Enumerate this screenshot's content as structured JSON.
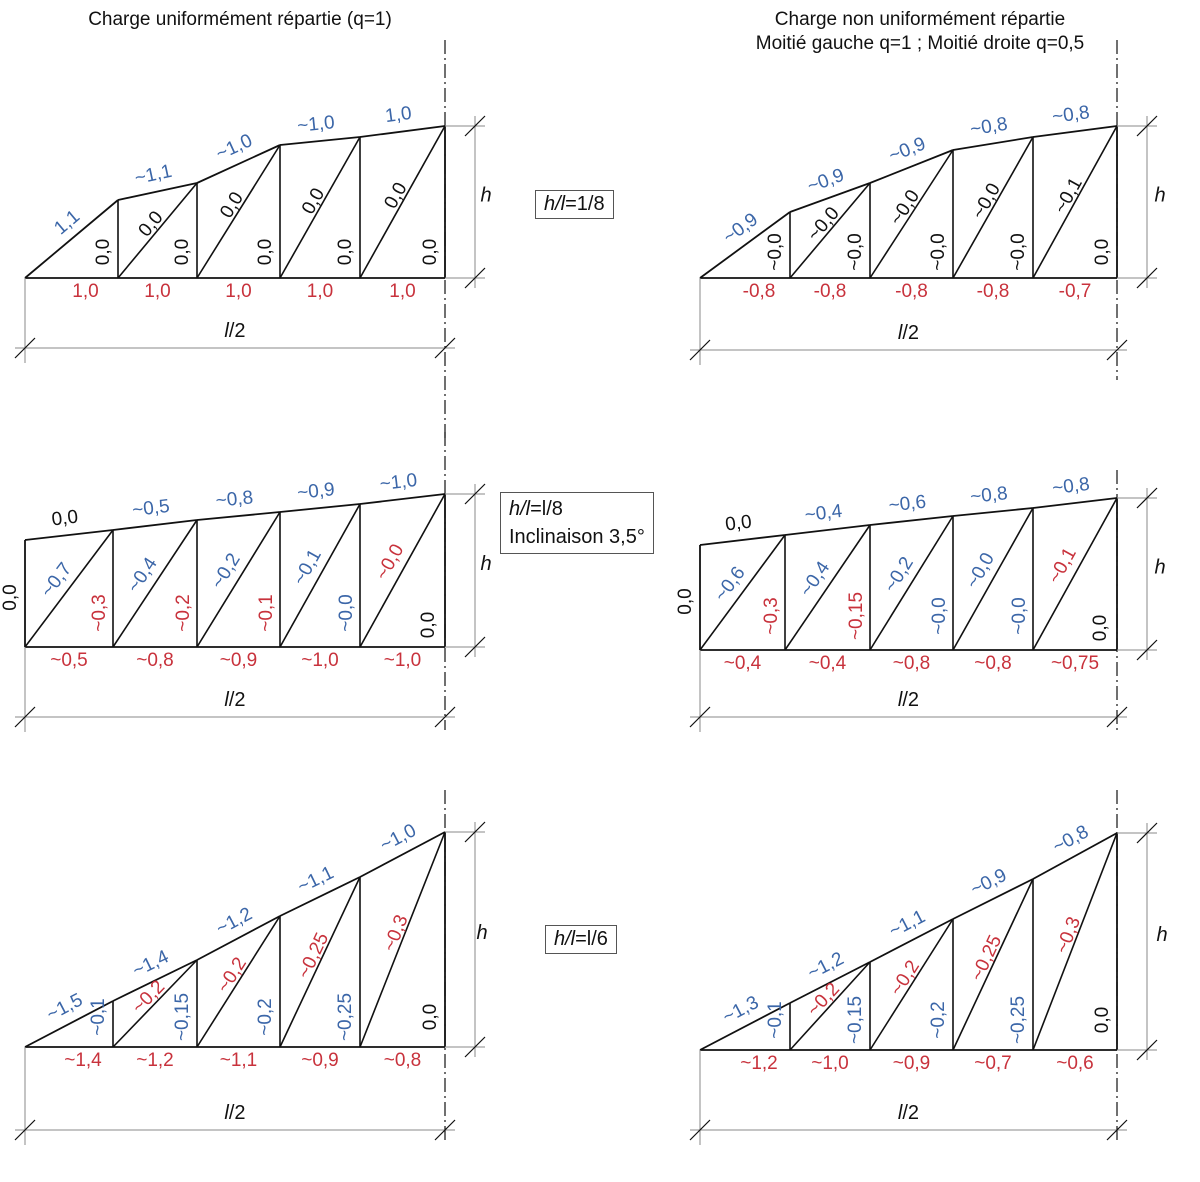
{
  "headers": {
    "left": "Charge uniformément répartie (q=1)",
    "right_line1": "Charge non uniformément répartie",
    "right_line2": "Moitié gauche q=1 ; Moitié droite q=0,5"
  },
  "colors": {
    "blue": "#3b66a8",
    "red": "#c8323c",
    "black": "#111111",
    "dim": "#8a8a8a"
  },
  "rows": [
    {
      "ratio_label": {
        "a": "h/l",
        "b": "=1/8",
        "extra": ""
      },
      "left": {
        "top": [
          "1,1",
          "~1,1",
          "~1,0",
          "~1,0",
          "1,0"
        ],
        "diag": [
          "0,0",
          "0,0",
          "0,0",
          "0,0"
        ],
        "vert": [
          "0,0",
          "0,0",
          "0,0",
          "0,0",
          "0,0"
        ],
        "bottom": [
          "1,0",
          "1,0",
          "1,0",
          "1,0",
          "1,0"
        ],
        "end_vert": "",
        "span": "l/2",
        "height": "h"
      },
      "right": {
        "top": [
          "~0,9",
          "~0,9",
          "~0,9",
          "~0,8",
          "~0,8"
        ],
        "diag": [
          "~0,0",
          "~0,0",
          "~0,0",
          "~0,1"
        ],
        "vert": [
          "~0,0",
          "~0,0",
          "~0,0",
          "~0,0",
          "0,0"
        ],
        "bottom": [
          "-0,8",
          "-0,8",
          "-0,8",
          "-0,8",
          "-0,7"
        ],
        "end_vert": "",
        "span": "l/2",
        "height": "h"
      }
    },
    {
      "ratio_label": {
        "a": "h/l",
        "b": "=l/8",
        "extra": "Inclinaison 3,5°"
      },
      "left": {
        "top": [
          "0,0",
          "~0,5",
          "~0,8",
          "~0,9",
          "~1,0"
        ],
        "diag": [
          "~0,7",
          "~0,4",
          "~0,2",
          "~0,1",
          "~0,0"
        ],
        "vert": [
          "~0,3",
          "~0,2",
          "~0,1",
          "~0,0",
          "0,0"
        ],
        "bottom": [
          "~0,5",
          "~0,8",
          "~0,9",
          "~1,0",
          "~1,0"
        ],
        "end_vert": "0,0",
        "span": "l/2",
        "height": "h"
      },
      "right": {
        "top": [
          "0,0",
          "~0,4",
          "~0,6",
          "~0,8",
          "~0,8"
        ],
        "diag": [
          "~0,6",
          "~0,4",
          "~0,2",
          "~0,0",
          "~0,1"
        ],
        "vert": [
          "~0,3",
          "~0,15",
          "~0,0",
          "~0,0",
          "0,0"
        ],
        "bottom": [
          "~0,4",
          "~0,4",
          "~0,8",
          "~0,8",
          "~0,75"
        ],
        "end_vert": "0,0",
        "span": "l/2",
        "height": "h"
      }
    },
    {
      "ratio_label": {
        "a": "h/l",
        "b": "=l/6",
        "extra": ""
      },
      "left": {
        "top": [
          "~1,5",
          "~1,4",
          "~1,2",
          "~1,1",
          "~1,0"
        ],
        "diag": [
          "~0,2",
          "~0,2",
          "~0,25",
          "~0,3"
        ],
        "vert": [
          "~0,1",
          "~0,15",
          "~0,2",
          "~0,25",
          "0,0"
        ],
        "bottom": [
          "~1,4",
          "~1,2",
          "~1,1",
          "~0,9",
          "~0,8"
        ],
        "end_vert": "",
        "span": "l/2",
        "height": "h"
      },
      "right": {
        "top": [
          "~1,3",
          "~1,2",
          "~1,1",
          "~0,9",
          "~0,8"
        ],
        "diag": [
          "~0,2",
          "~0,2",
          "~0,25",
          "~0,3"
        ],
        "vert": [
          "~0,1",
          "~0,15",
          "~0,2",
          "~0,25",
          "0,0"
        ],
        "bottom": [
          "~1,2",
          "~1,0",
          "~0,9",
          "~0,7",
          "~0,6"
        ],
        "end_vert": "",
        "span": "l/2",
        "height": "h"
      }
    }
  ]
}
